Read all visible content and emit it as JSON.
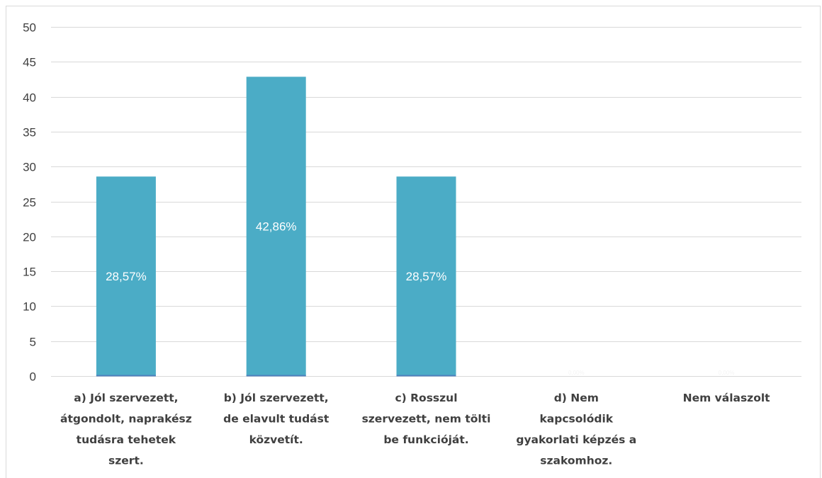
{
  "chart_data": {
    "type": "bar",
    "categories": [
      [
        "a)      Jól szervezett,",
        "átgondolt, naprakész",
        "tudásra tehetek",
        "szert."
      ],
      [
        "b)      Jól szervezett,",
        "de elavult tudást",
        "közvetít."
      ],
      [
        "c)      Rosszul",
        "szervezett, nem tölti",
        "be funkcióját."
      ],
      [
        "d)      Nem",
        "kapcsolódik",
        "gyakorlati képzés a",
        "szakomhoz."
      ],
      [
        "Nem válaszolt"
      ]
    ],
    "values": [
      28.57,
      42.86,
      28.57,
      0,
      0
    ],
    "data_labels": [
      "28,57%",
      "42,86%",
      "28,57%",
      "0,00%",
      "0,00%"
    ],
    "ylim": [
      0,
      50
    ],
    "yticks": [
      0,
      5,
      10,
      15,
      20,
      25,
      30,
      35,
      40,
      45,
      50
    ],
    "grid": true,
    "bar_color": "#4bacc6",
    "bar_edge_color": "#4f81bd",
    "grid_color": "#d9d9d9",
    "text_color": "#404040",
    "title": "",
    "xlabel": "",
    "ylabel": ""
  }
}
